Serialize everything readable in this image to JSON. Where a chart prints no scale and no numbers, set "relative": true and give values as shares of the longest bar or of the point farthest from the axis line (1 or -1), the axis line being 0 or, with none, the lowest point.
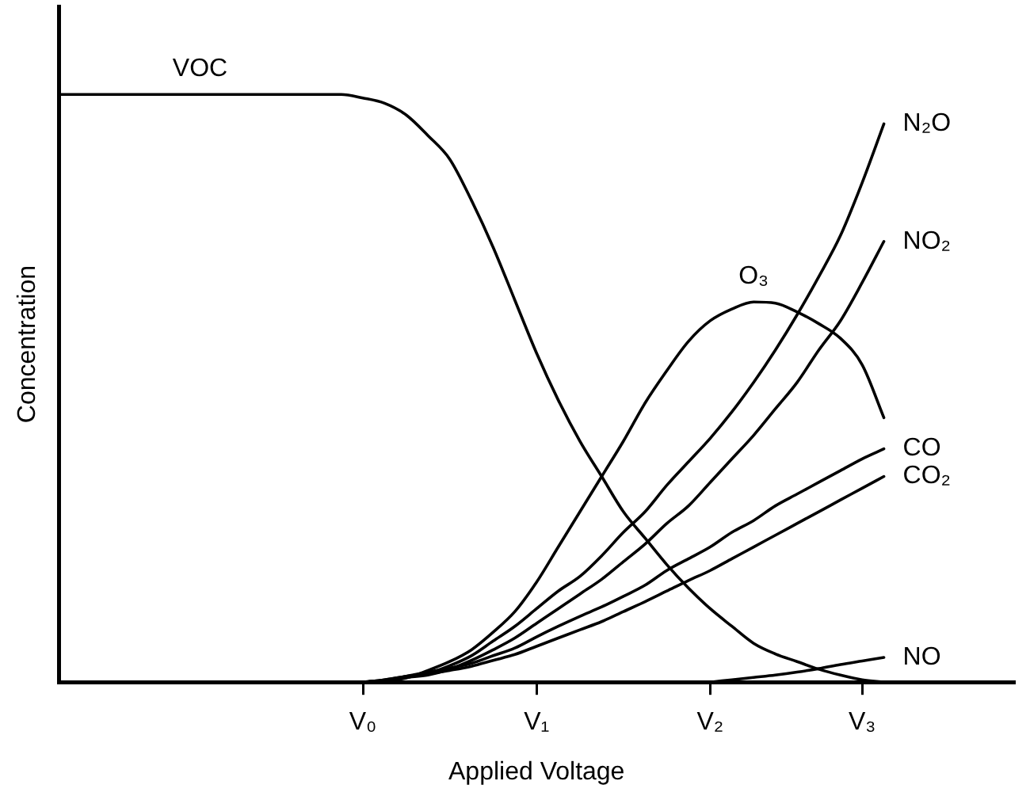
{
  "chart_data": {
    "type": "line",
    "relative": true,
    "xlabel": "Applied Voltage",
    "ylabel": "Concentration",
    "categories": [
      null,
      null,
      null,
      null,
      null,
      null,
      null,
      null,
      null,
      null,
      null,
      null,
      null,
      null,
      "V₀",
      null,
      null,
      null,
      null,
      null,
      null,
      null,
      "V₁",
      null,
      null,
      null,
      null,
      null,
      null,
      null,
      "V₂",
      null,
      null,
      null,
      null,
      null,
      null,
      "V₃",
      null,
      null,
      null,
      null,
      null,
      null,
      null
    ],
    "grid": false,
    "legend": false,
    "marker": "none",
    "line_style": "solid",
    "series": [
      {
        "name": "VOC",
        "color": "#000000",
        "values": [
          1.0,
          1.0,
          1.0,
          1.0,
          1.0,
          1.0,
          1.0,
          1.0,
          1.0,
          1.0,
          1.0,
          1.0,
          1.0,
          1.0,
          0.994,
          0.985,
          0.965,
          0.93,
          0.89,
          0.82,
          0.74,
          0.65,
          0.56,
          0.48,
          0.41,
          0.35,
          0.29,
          0.245,
          0.2,
          0.16,
          0.125,
          0.095,
          0.066,
          0.048,
          0.035,
          0.022,
          0.012,
          0.004,
          0,
          null,
          null,
          null,
          null,
          null,
          null
        ]
      },
      {
        "name": "O₃",
        "color": "#000000",
        "values": [
          null,
          null,
          null,
          null,
          null,
          null,
          null,
          null,
          null,
          null,
          null,
          null,
          null,
          null,
          0,
          0.003,
          0.007,
          0.02,
          0.035,
          0.055,
          0.085,
          0.12,
          0.17,
          0.23,
          0.29,
          0.35,
          0.41,
          0.475,
          0.53,
          0.58,
          0.615,
          0.635,
          0.647,
          0.645,
          0.63,
          0.61,
          0.585,
          0.54,
          0.45,
          null,
          null,
          null,
          null,
          null,
          null
        ]
      },
      {
        "name": "N₂O",
        "color": "#000000",
        "values": [
          null,
          null,
          null,
          null,
          null,
          null,
          null,
          null,
          null,
          null,
          null,
          null,
          null,
          null,
          0,
          0.004,
          0.01,
          0.015,
          0.028,
          0.045,
          0.07,
          0.095,
          0.125,
          0.155,
          0.18,
          0.215,
          0.255,
          0.29,
          0.335,
          0.375,
          0.415,
          0.46,
          0.51,
          0.565,
          0.625,
          0.69,
          0.76,
          0.85,
          0.95,
          null,
          null,
          null,
          null,
          null,
          null
        ]
      },
      {
        "name": "NO₂",
        "color": "#000000",
        "values": [
          null,
          null,
          null,
          null,
          null,
          null,
          null,
          null,
          null,
          null,
          null,
          null,
          null,
          null,
          0,
          0.003,
          0.008,
          0.012,
          0.022,
          0.037,
          0.055,
          0.075,
          0.1,
          0.125,
          0.15,
          0.175,
          0.205,
          0.235,
          0.27,
          0.3,
          0.34,
          0.38,
          0.42,
          0.465,
          0.51,
          0.565,
          0.615,
          0.68,
          0.75,
          null,
          null,
          null,
          null,
          null,
          null
        ]
      },
      {
        "name": "CO",
        "color": "#000000",
        "values": [
          null,
          null,
          null,
          null,
          null,
          null,
          null,
          null,
          null,
          null,
          null,
          null,
          null,
          null,
          0,
          0.004,
          0.01,
          0.017,
          0.024,
          0.032,
          0.045,
          0.058,
          0.077,
          0.095,
          0.112,
          0.128,
          0.146,
          0.165,
          0.19,
          0.21,
          0.23,
          0.255,
          0.275,
          0.3,
          0.32,
          0.34,
          0.36,
          0.38,
          0.397,
          null,
          null,
          null,
          null,
          null,
          null
        ]
      },
      {
        "name": "CO₂",
        "color": "#000000",
        "values": [
          null,
          null,
          null,
          null,
          null,
          null,
          null,
          null,
          null,
          null,
          null,
          null,
          null,
          null,
          0,
          0.003,
          0.008,
          0.014,
          0.02,
          0.027,
          0.037,
          0.047,
          0.061,
          0.075,
          0.089,
          0.103,
          0.12,
          0.137,
          0.155,
          0.173,
          0.19,
          0.21,
          0.23,
          0.25,
          0.27,
          0.29,
          0.31,
          0.33,
          0.35,
          null,
          null,
          null,
          null,
          null,
          null
        ]
      },
      {
        "name": "NO",
        "color": "#000000",
        "values": [
          null,
          null,
          null,
          null,
          null,
          null,
          null,
          null,
          null,
          null,
          null,
          null,
          null,
          null,
          null,
          null,
          null,
          null,
          null,
          null,
          null,
          null,
          null,
          null,
          null,
          null,
          null,
          null,
          null,
          null,
          0,
          0.004,
          0.008,
          0.012,
          0.017,
          0.023,
          0.03,
          0.036,
          0.042,
          null,
          null,
          null,
          null,
          null,
          null
        ]
      }
    ]
  }
}
